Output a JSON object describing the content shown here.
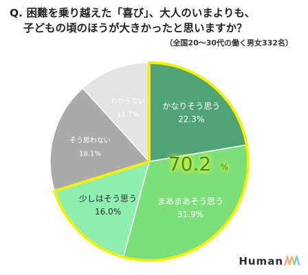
{
  "title": {
    "line1": "Q. 困難を乗り越えた「喜び」、大人のいまよりも、",
    "line2": "子どもの頃のほうが大きかったと思いますか？"
  },
  "subtitle": "（全国20〜30代の働く男女332名）",
  "brand": {
    "text": "Human",
    "logo_icon": "human-logo-icon"
  },
  "highlight": {
    "value": "70.2",
    "unit": "%"
  },
  "colors": {
    "highlight_border": "#f4f100",
    "highlight_text": "#3e8a3e"
  },
  "chart_data": {
    "type": "pie",
    "slices": [
      {
        "label": "かなりそう思う",
        "value": 22.3,
        "value_label": "22.3%",
        "color": "#4fa377",
        "label_color": "#ffffff",
        "highlighted": true
      },
      {
        "label": "まあまあそう思う",
        "value": 31.9,
        "value_label": "31.9%",
        "color": "#7ddf7a",
        "label_color": "#ffffff",
        "highlighted": true
      },
      {
        "label": "少しはそう思う",
        "value": 16.0,
        "value_label": "16.0%",
        "color": "#90eeb0",
        "label_color": "#2a2a2a",
        "highlighted": true
      },
      {
        "label": "そう思わない",
        "value": 18.1,
        "value_label": "18.1%",
        "color": "#aaaaaa",
        "label_color": "#ffffff",
        "highlighted": false
      },
      {
        "label": "わからない",
        "value": 11.7,
        "value_label": "11.7%",
        "color": "#e3e3e3",
        "label_color": "#ffffff",
        "highlighted": false
      }
    ],
    "start_angle_deg": 0,
    "direction": "clockwise"
  }
}
